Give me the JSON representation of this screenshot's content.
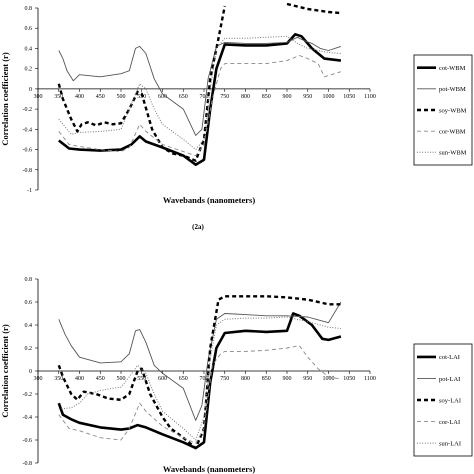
{
  "chart_data": [
    {
      "type": "line",
      "panel_label": "(2a)",
      "xlabel": "Wavebands (nanometers)",
      "ylabel": "Correlation coefficient (r)",
      "xlim": [
        300,
        1100
      ],
      "ylim": [
        -1,
        0.8
      ],
      "x_axis_at": 0,
      "x_ticks": [
        300,
        350,
        400,
        450,
        500,
        550,
        600,
        650,
        700,
        750,
        800,
        850,
        900,
        950,
        1000,
        1050,
        1100
      ],
      "y_ticks": [
        0.8,
        0.6,
        0.4,
        0.2,
        0,
        -0.2,
        -0.4,
        -0.6,
        -0.8,
        -1
      ],
      "legend_position": "right",
      "series": [
        {
          "name": "cot-WBM",
          "style": "solid-thick",
          "color": "#000000",
          "points": [
            [
              350,
              -0.51
            ],
            [
              375,
              -0.59
            ],
            [
              400,
              -0.6
            ],
            [
              450,
              -0.61
            ],
            [
              500,
              -0.6
            ],
            [
              525,
              -0.55
            ],
            [
              545,
              -0.47
            ],
            [
              560,
              -0.52
            ],
            [
              600,
              -0.58
            ],
            [
              650,
              -0.66
            ],
            [
              680,
              -0.75
            ],
            [
              700,
              -0.7
            ],
            [
              715,
              -0.2
            ],
            [
              730,
              0.2
            ],
            [
              750,
              0.44
            ],
            [
              800,
              0.43
            ],
            [
              850,
              0.43
            ],
            [
              900,
              0.45
            ],
            [
              920,
              0.54
            ],
            [
              935,
              0.52
            ],
            [
              960,
              0.4
            ],
            [
              990,
              0.3
            ],
            [
              1030,
              0.28
            ]
          ]
        },
        {
          "name": "pot-WBM",
          "style": "solid-thin",
          "color": "#555555",
          "points": [
            [
              350,
              0.38
            ],
            [
              360,
              0.3
            ],
            [
              370,
              0.18
            ],
            [
              385,
              0.08
            ],
            [
              400,
              0.14
            ],
            [
              450,
              0.12
            ],
            [
              500,
              0.15
            ],
            [
              520,
              0.18
            ],
            [
              535,
              0.4
            ],
            [
              545,
              0.42
            ],
            [
              560,
              0.35
            ],
            [
              580,
              0.1
            ],
            [
              600,
              -0.05
            ],
            [
              650,
              -0.2
            ],
            [
              680,
              -0.46
            ],
            [
              695,
              -0.4
            ],
            [
              710,
              0.1
            ],
            [
              730,
              0.42
            ],
            [
              750,
              0.46
            ],
            [
              800,
              0.45
            ],
            [
              850,
              0.45
            ],
            [
              900,
              0.46
            ],
            [
              925,
              0.51
            ],
            [
              940,
              0.48
            ],
            [
              960,
              0.45
            ],
            [
              980,
              0.4
            ],
            [
              1000,
              0.38
            ],
            [
              1030,
              0.42
            ]
          ]
        },
        {
          "name": "soy-WBM",
          "style": "dashed-thick",
          "color": "#000000",
          "points": [
            [
              350,
              0.05
            ],
            [
              360,
              -0.1
            ],
            [
              380,
              -0.3
            ],
            [
              395,
              -0.42
            ],
            [
              405,
              -0.35
            ],
            [
              420,
              -0.33
            ],
            [
              440,
              -0.36
            ],
            [
              460,
              -0.33
            ],
            [
              480,
              -0.35
            ],
            [
              500,
              -0.34
            ],
            [
              520,
              -0.2
            ],
            [
              540,
              -0.03
            ],
            [
              550,
              -0.05
            ],
            [
              575,
              -0.4
            ],
            [
              600,
              -0.58
            ],
            [
              625,
              -0.64
            ],
            [
              650,
              -0.66
            ],
            [
              680,
              -0.71
            ],
            [
              700,
              -0.5
            ],
            [
              715,
              0.1
            ],
            [
              735,
              0.5
            ],
            [
              750,
              0.82
            ]
          ]
        },
        {
          "name": "soy-WBM",
          "style": "dashed-thick",
          "color": "#000000",
          "points": [
            [
              900,
              0.84
            ],
            [
              950,
              0.79
            ],
            [
              1000,
              0.76
            ],
            [
              1030,
              0.75
            ]
          ]
        },
        {
          "name": "cor-WBM",
          "style": "dashed-thin",
          "color": "#888888",
          "points": [
            [
              350,
              -0.42
            ],
            [
              375,
              -0.55
            ],
            [
              400,
              -0.57
            ],
            [
              450,
              -0.6
            ],
            [
              500,
              -0.62
            ],
            [
              520,
              -0.58
            ],
            [
              545,
              -0.35
            ],
            [
              560,
              -0.42
            ],
            [
              600,
              -0.55
            ],
            [
              650,
              -0.62
            ],
            [
              680,
              -0.66
            ],
            [
              700,
              -0.55
            ],
            [
              720,
              -0.1
            ],
            [
              740,
              0.2
            ],
            [
              750,
              0.25
            ],
            [
              800,
              0.25
            ],
            [
              850,
              0.25
            ],
            [
              900,
              0.28
            ],
            [
              930,
              0.33
            ],
            [
              950,
              0.3
            ],
            [
              975,
              0.25
            ],
            [
              990,
              0.12
            ],
            [
              1030,
              0.17
            ]
          ]
        },
        {
          "name": "sun-WBM",
          "style": "dotted",
          "color": "#777777",
          "points": [
            [
              350,
              -0.3
            ],
            [
              380,
              -0.45
            ],
            [
              400,
              -0.43
            ],
            [
              450,
              -0.42
            ],
            [
              500,
              -0.4
            ],
            [
              520,
              -0.2
            ],
            [
              545,
              0.05
            ],
            [
              560,
              0.0
            ],
            [
              580,
              -0.2
            ],
            [
              600,
              -0.35
            ],
            [
              650,
              -0.5
            ],
            [
              680,
              -0.6
            ],
            [
              700,
              -0.5
            ],
            [
              715,
              0.0
            ],
            [
              730,
              0.4
            ],
            [
              750,
              0.5
            ],
            [
              800,
              0.5
            ],
            [
              850,
              0.51
            ],
            [
              900,
              0.52
            ],
            [
              925,
              0.45
            ],
            [
              950,
              0.4
            ],
            [
              975,
              0.38
            ],
            [
              1000,
              0.36
            ],
            [
              1030,
              0.35
            ]
          ]
        }
      ]
    },
    {
      "type": "line",
      "panel_label": "",
      "xlabel": "Wavebands (nanometers)",
      "ylabel": "Correlation coefficient (r)",
      "xlim": [
        300,
        1100
      ],
      "ylim": [
        -0.8,
        0.8
      ],
      "x_axis_at": 0,
      "x_ticks": [
        300,
        350,
        400,
        450,
        500,
        550,
        600,
        650,
        700,
        750,
        800,
        850,
        900,
        950,
        1000,
        1050,
        1100
      ],
      "y_ticks": [
        0.8,
        0.6,
        0.4,
        0.2,
        0,
        -0.2,
        -0.4,
        -0.6,
        -0.8
      ],
      "legend_position": "right",
      "series": [
        {
          "name": "cot-LAI",
          "style": "solid-thick",
          "color": "#000000",
          "points": [
            [
              350,
              -0.28
            ],
            [
              360,
              -0.38
            ],
            [
              380,
              -0.42
            ],
            [
              400,
              -0.45
            ],
            [
              450,
              -0.49
            ],
            [
              500,
              -0.51
            ],
            [
              520,
              -0.5
            ],
            [
              540,
              -0.47
            ],
            [
              560,
              -0.49
            ],
            [
              600,
              -0.55
            ],
            [
              650,
              -0.62
            ],
            [
              680,
              -0.67
            ],
            [
              700,
              -0.62
            ],
            [
              715,
              -0.1
            ],
            [
              730,
              0.2
            ],
            [
              750,
              0.33
            ],
            [
              800,
              0.35
            ],
            [
              850,
              0.34
            ],
            [
              900,
              0.35
            ],
            [
              915,
              0.5
            ],
            [
              930,
              0.48
            ],
            [
              960,
              0.4
            ],
            [
              985,
              0.28
            ],
            [
              1000,
              0.27
            ],
            [
              1030,
              0.3
            ]
          ]
        },
        {
          "name": "pot-LAI",
          "style": "solid-thin",
          "color": "#555555",
          "points": [
            [
              350,
              0.45
            ],
            [
              365,
              0.32
            ],
            [
              380,
              0.22
            ],
            [
              400,
              0.12
            ],
            [
              450,
              0.07
            ],
            [
              500,
              0.08
            ],
            [
              520,
              0.15
            ],
            [
              535,
              0.35
            ],
            [
              545,
              0.36
            ],
            [
              560,
              0.25
            ],
            [
              580,
              0.05
            ],
            [
              600,
              -0.02
            ],
            [
              650,
              -0.15
            ],
            [
              680,
              -0.43
            ],
            [
              695,
              -0.3
            ],
            [
              710,
              0.1
            ],
            [
              730,
              0.45
            ],
            [
              750,
              0.5
            ],
            [
              800,
              0.49
            ],
            [
              850,
              0.48
            ],
            [
              900,
              0.48
            ],
            [
              950,
              0.47
            ],
            [
              980,
              0.44
            ],
            [
              1000,
              0.42
            ],
            [
              1030,
              0.6
            ]
          ]
        },
        {
          "name": "soy-LAI",
          "style": "dashed-thick",
          "color": "#000000",
          "points": [
            [
              350,
              0.05
            ],
            [
              360,
              -0.05
            ],
            [
              380,
              -0.2
            ],
            [
              395,
              -0.25
            ],
            [
              410,
              -0.18
            ],
            [
              440,
              -0.2
            ],
            [
              470,
              -0.24
            ],
            [
              500,
              -0.25
            ],
            [
              520,
              -0.2
            ],
            [
              540,
              0.0
            ],
            [
              550,
              0.02
            ],
            [
              570,
              -0.2
            ],
            [
              600,
              -0.4
            ],
            [
              620,
              -0.5
            ],
            [
              650,
              -0.58
            ],
            [
              680,
              -0.67
            ],
            [
              700,
              -0.5
            ],
            [
              715,
              0.2
            ],
            [
              735,
              0.62
            ],
            [
              750,
              0.65
            ],
            [
              800,
              0.65
            ],
            [
              850,
              0.65
            ],
            [
              900,
              0.64
            ],
            [
              950,
              0.62
            ],
            [
              1000,
              0.58
            ],
            [
              1030,
              0.58
            ]
          ]
        },
        {
          "name": "cor-LAI",
          "style": "dashed-thin",
          "color": "#888888",
          "points": [
            [
              350,
              -0.38
            ],
            [
              375,
              -0.5
            ],
            [
              400,
              -0.52
            ],
            [
              450,
              -0.58
            ],
            [
              500,
              -0.6
            ],
            [
              520,
              -0.5
            ],
            [
              545,
              -0.28
            ],
            [
              560,
              -0.35
            ],
            [
              600,
              -0.48
            ],
            [
              650,
              -0.58
            ],
            [
              680,
              -0.63
            ],
            [
              700,
              -0.5
            ],
            [
              720,
              0.05
            ],
            [
              740,
              0.15
            ],
            [
              750,
              0.17
            ],
            [
              800,
              0.17
            ],
            [
              850,
              0.18
            ],
            [
              900,
              0.2
            ],
            [
              930,
              0.22
            ],
            [
              950,
              0.12
            ],
            [
              975,
              0.02
            ],
            [
              1000,
              -0.05
            ],
            [
              1030,
              -0.07
            ]
          ]
        },
        {
          "name": "sun-LAI",
          "style": "dotted",
          "color": "#777777",
          "points": [
            [
              350,
              -0.33
            ],
            [
              380,
              -0.32
            ],
            [
              400,
              -0.28
            ],
            [
              420,
              -0.2
            ],
            [
              450,
              -0.17
            ],
            [
              480,
              -0.15
            ],
            [
              500,
              -0.14
            ],
            [
              520,
              -0.05
            ],
            [
              540,
              0.05
            ],
            [
              560,
              -0.02
            ],
            [
              580,
              -0.2
            ],
            [
              600,
              -0.35
            ],
            [
              650,
              -0.5
            ],
            [
              680,
              -0.6
            ],
            [
              700,
              -0.4
            ],
            [
              715,
              0.1
            ],
            [
              730,
              0.4
            ],
            [
              750,
              0.45
            ],
            [
              800,
              0.46
            ],
            [
              850,
              0.46
            ],
            [
              900,
              0.47
            ],
            [
              950,
              0.43
            ],
            [
              980,
              0.4
            ],
            [
              1000,
              0.38
            ],
            [
              1030,
              0.37
            ]
          ]
        }
      ]
    }
  ]
}
